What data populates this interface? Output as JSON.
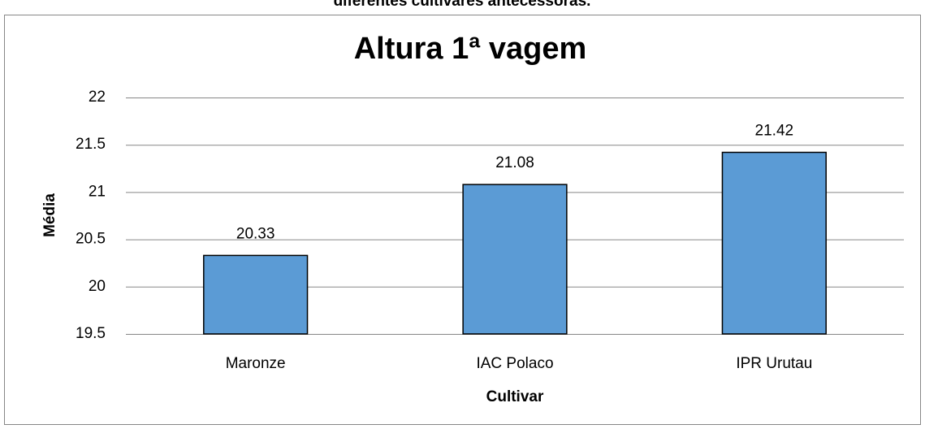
{
  "caption": "diferentes cultivares antecessoras.",
  "chart_data": {
    "type": "bar",
    "title": "Altura 1ª vagem",
    "x_label": "Cultivar",
    "y_label": "Média",
    "categories": [
      "Maronze",
      "IAC Polaco",
      "IPR Urutau"
    ],
    "values": [
      20.33,
      21.08,
      21.42
    ],
    "color": "#5b9bd5",
    "ylim": [
      19.5,
      22
    ],
    "yticks": [
      19.5,
      20,
      20.5,
      21,
      21.5,
      22
    ],
    "grid": true
  }
}
